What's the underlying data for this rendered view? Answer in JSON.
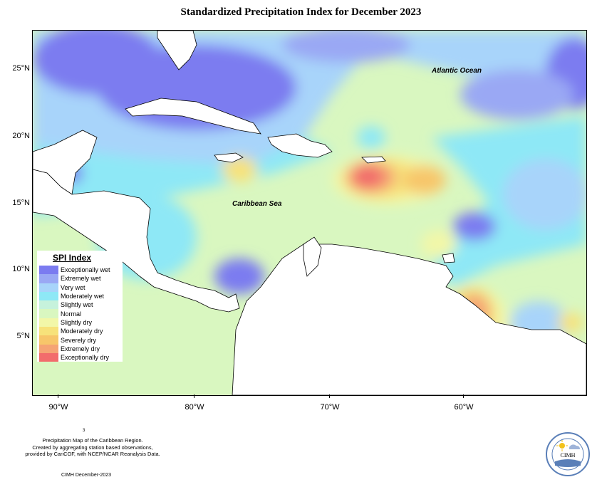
{
  "title": "Standardized Precipitation Index for December 2023",
  "map": {
    "lat_labels": [
      "25°N",
      "20°N",
      "15°N",
      "10°N",
      "5°N"
    ],
    "lon_labels": [
      "90°W",
      "80°W",
      "70°W",
      "60°W"
    ],
    "ocean_labels": {
      "atlantic": "Atlantic Ocean",
      "caribbean": "Caribbean Sea"
    }
  },
  "legend": {
    "title": "SPI Index",
    "items": [
      {
        "label": "Exceptionally wet",
        "color": "#7b7bf0"
      },
      {
        "label": "Extremely wet",
        "color": "#9aa8f4"
      },
      {
        "label": "Very wet",
        "color": "#a8d4fa"
      },
      {
        "label": "Moderately wet",
        "color": "#8ee8f6"
      },
      {
        "label": "Slightly wet",
        "color": "#c6f2dc"
      },
      {
        "label": "Normal",
        "color": "#d9f7c0"
      },
      {
        "label": "Slightly dry",
        "color": "#f2f7a8"
      },
      {
        "label": "Moderately dry",
        "color": "#f7e27a"
      },
      {
        "label": "Severely dry",
        "color": "#f7c66a"
      },
      {
        "label": "Extremely dry",
        "color": "#f5a474"
      },
      {
        "label": "Exceptionally dry",
        "color": "#f26c6c"
      }
    ]
  },
  "footnote": {
    "line1": "Precipitation Map of the Caribbean Region.",
    "line2": "Created by aggregating station based observations,",
    "line3": "provided by CariCOF, with NCEP/NCAR Reanalysis Data.",
    "mark": "3",
    "date": "CIMH December-2023"
  },
  "logo": {
    "text": "CIMH",
    "icon": "cimh-sun-logo"
  }
}
